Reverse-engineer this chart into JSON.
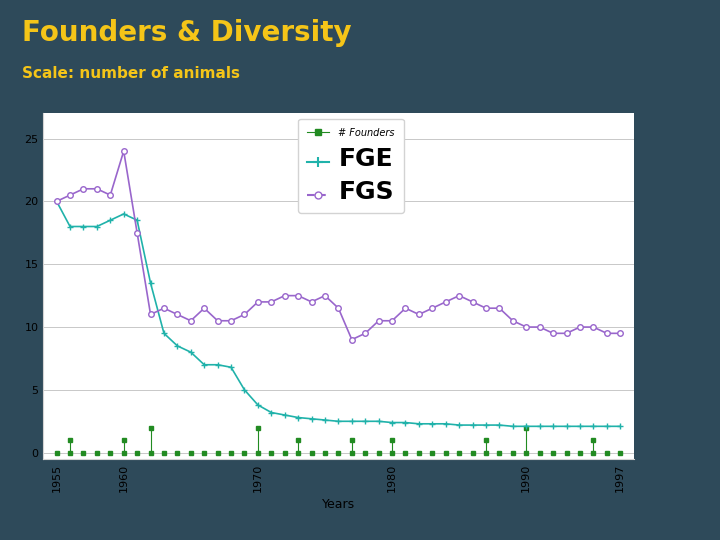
{
  "title": "Founders & Diversity",
  "subtitle": "Scale: number of animals",
  "title_color": "#F5C518",
  "header_bg": "#2E4A5A",
  "xlabel": "Years",
  "xlim": [
    1954,
    1998
  ],
  "ylim": [
    -0.5,
    27
  ],
  "yticks": [
    0,
    5,
    10,
    15,
    20,
    25
  ],
  "xticks": [
    1955,
    1960,
    1965,
    1970,
    1975,
    1980,
    1985,
    1990,
    1995,
    1997
  ],
  "xtick_labels": [
    "1955",
    "1960",
    "",
    "1970",
    "",
    "1980",
    "",
    "1990",
    "",
    "1997"
  ],
  "FGE_years": [
    1955,
    1956,
    1957,
    1958,
    1959,
    1960,
    1961,
    1962,
    1963,
    1964,
    1965,
    1966,
    1967,
    1968,
    1969,
    1970,
    1971,
    1972,
    1973,
    1974,
    1975,
    1976,
    1977,
    1978,
    1979,
    1980,
    1981,
    1982,
    1983,
    1984,
    1985,
    1986,
    1987,
    1988,
    1989,
    1990,
    1991,
    1992,
    1993,
    1994,
    1995,
    1996,
    1997
  ],
  "FGE_values": [
    20.0,
    18.0,
    18.0,
    18.0,
    18.5,
    19.0,
    18.5,
    13.5,
    9.5,
    8.5,
    8.0,
    7.0,
    7.0,
    6.8,
    5.0,
    3.8,
    3.2,
    3.0,
    2.8,
    2.7,
    2.6,
    2.5,
    2.5,
    2.5,
    2.5,
    2.4,
    2.4,
    2.3,
    2.3,
    2.3,
    2.2,
    2.2,
    2.2,
    2.2,
    2.1,
    2.1,
    2.1,
    2.1,
    2.1,
    2.1,
    2.1,
    2.1,
    2.1
  ],
  "FGS_years": [
    1955,
    1956,
    1957,
    1958,
    1959,
    1960,
    1961,
    1962,
    1963,
    1964,
    1965,
    1966,
    1967,
    1968,
    1969,
    1970,
    1971,
    1972,
    1973,
    1974,
    1975,
    1976,
    1977,
    1978,
    1979,
    1980,
    1981,
    1982,
    1983,
    1984,
    1985,
    1986,
    1987,
    1988,
    1989,
    1990,
    1991,
    1992,
    1993,
    1994,
    1995,
    1996,
    1997
  ],
  "FGS_values": [
    20.0,
    20.5,
    21.0,
    21.0,
    20.5,
    24.0,
    17.5,
    11.0,
    11.5,
    11.0,
    10.5,
    11.5,
    10.5,
    10.5,
    11.0,
    12.0,
    12.0,
    12.5,
    12.5,
    12.0,
    12.5,
    11.5,
    9.0,
    9.5,
    10.5,
    10.5,
    11.5,
    11.0,
    11.5,
    12.0,
    12.5,
    12.0,
    11.5,
    11.5,
    10.5,
    10.0,
    10.0,
    9.5,
    9.5,
    10.0,
    10.0,
    9.5,
    9.5
  ],
  "Founders_years": [
    1955,
    1956,
    1957,
    1958,
    1959,
    1960,
    1961,
    1962,
    1963,
    1964,
    1965,
    1966,
    1967,
    1968,
    1969,
    1970,
    1971,
    1972,
    1973,
    1974,
    1975,
    1976,
    1977,
    1978,
    1979,
    1980,
    1981,
    1982,
    1983,
    1984,
    1985,
    1986,
    1987,
    1988,
    1989,
    1990,
    1991,
    1992,
    1993,
    1994,
    1995,
    1996,
    1997
  ],
  "Founders_values": [
    0,
    1,
    0,
    0,
    0,
    1,
    0,
    2,
    0,
    0,
    0,
    0,
    0,
    0,
    0,
    2,
    0,
    0,
    1,
    0,
    0,
    0,
    1,
    0,
    0,
    1,
    0,
    0,
    0,
    0,
    0,
    0,
    1,
    0,
    0,
    2,
    0,
    0,
    0,
    0,
    1,
    0,
    0
  ],
  "FGE_color": "#20B2AA",
  "FGS_color": "#9966CC",
  "Founders_color": "#228B22",
  "bg_color": "#FFFFFF"
}
